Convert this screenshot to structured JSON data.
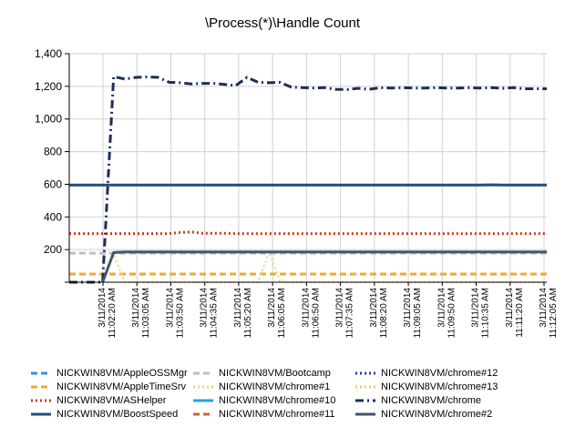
{
  "chart_data": {
    "type": "line",
    "title": "\\Process(*)\\Handle Count",
    "ylim": [
      0,
      1400
    ],
    "yticks": [
      "1,400",
      "1,200",
      "1,000",
      "800",
      "600",
      "400",
      "200",
      ""
    ],
    "ytick_values": [
      1400,
      1200,
      1000,
      800,
      600,
      400,
      200,
      0
    ],
    "x_tick_labels": [
      [
        "3/11/2014",
        "11:02:20 AM"
      ],
      [
        "3/11/2014",
        "11:03:05 AM"
      ],
      [
        "3/11/2014",
        "11:03:50 AM"
      ],
      [
        "3/11/2014",
        "11:04:35 AM"
      ],
      [
        "3/11/2014",
        "11:05:20 AM"
      ],
      [
        "3/11/2014",
        "11:06:05 AM"
      ],
      [
        "3/11/2014",
        "11:06:50 AM"
      ],
      [
        "3/11/2014",
        "11:07:35 AM"
      ],
      [
        "3/11/2014",
        "11:08:20 AM"
      ],
      [
        "3/11/2014",
        "11:09:05 AM"
      ],
      [
        "3/11/2014",
        "11:09:50 AM"
      ],
      [
        "3/11/2014",
        "11:10:35 AM"
      ],
      [
        "3/11/2014",
        "11:11:20 AM"
      ],
      [
        "3/11/2014",
        "11:12:05 AM"
      ]
    ],
    "x": [
      "11:01:35",
      "11:01:50",
      "11:02:05",
      "11:02:20",
      "11:02:35",
      "11:02:50",
      "11:03:05",
      "11:03:20",
      "11:03:35",
      "11:03:50",
      "11:04:05",
      "11:04:20",
      "11:04:35",
      "11:04:50",
      "11:05:05",
      "11:05:20",
      "11:05:35",
      "11:05:50",
      "11:06:05",
      "11:06:20",
      "11:06:35",
      "11:06:50",
      "11:07:05",
      "11:07:20",
      "11:07:35",
      "11:07:50",
      "11:08:05",
      "11:08:20",
      "11:08:35",
      "11:08:50",
      "11:09:05",
      "11:09:20",
      "11:09:35",
      "11:09:50",
      "11:10:05",
      "11:10:20",
      "11:10:35",
      "11:10:50",
      "11:11:05",
      "11:11:20",
      "11:11:35",
      "11:11:50",
      "11:12:05",
      "11:12:20"
    ],
    "grid": true,
    "legend_placement": "bottom",
    "series": [
      {
        "name": "NICKWIN8VM/AppleOSSMgr",
        "color": "#3b8fe0",
        "dash": "dash",
        "width": 2,
        "values": [
          null,
          null,
          null,
          null,
          null,
          null,
          null,
          null,
          null,
          null,
          null,
          null,
          null,
          null,
          null,
          null,
          null,
          null,
          null,
          null,
          null,
          null,
          null,
          null,
          null,
          null,
          null,
          null,
          null,
          null,
          null,
          null,
          null,
          null,
          null,
          null,
          null,
          null,
          null,
          null,
          null,
          null,
          null,
          null
        ]
      },
      {
        "name": "NICKWIN8VM/AppleTimeSrv",
        "color": "#f0a830",
        "dash": "dash",
        "width": 3,
        "values": [
          50,
          50,
          50,
          50,
          50,
          50,
          50,
          50,
          50,
          50,
          50,
          50,
          50,
          50,
          50,
          50,
          50,
          50,
          50,
          50,
          50,
          50,
          50,
          50,
          50,
          50,
          50,
          50,
          50,
          50,
          50,
          50,
          50,
          50,
          50,
          50,
          50,
          50,
          50,
          50,
          50,
          50,
          50,
          50
        ]
      },
      {
        "name": "NICKWIN8VM/ASHelper",
        "color": "#cc3a1c",
        "dash": "dot",
        "width": 3,
        "values": [
          298,
          298,
          298,
          298,
          298,
          298,
          298,
          298,
          298,
          298,
          305,
          308,
          300,
          300,
          300,
          298,
          298,
          298,
          298,
          298,
          298,
          298,
          298,
          298,
          298,
          298,
          298,
          298,
          298,
          298,
          298,
          298,
          298,
          298,
          298,
          298,
          298,
          298,
          298,
          298,
          298,
          298,
          298,
          298
        ]
      },
      {
        "name": "NICKWIN8VM/BoostSpeed",
        "color": "#1f4e79",
        "dash": "solid",
        "width": 3,
        "values": [
          595,
          595,
          595,
          595,
          595,
          595,
          595,
          595,
          595,
          595,
          595,
          595,
          595,
          595,
          595,
          595,
          595,
          595,
          595,
          595,
          595,
          595,
          595,
          595,
          595,
          595,
          595,
          595,
          595,
          595,
          595,
          595,
          595,
          595,
          595,
          595,
          595,
          595,
          597,
          595,
          595,
          595,
          595,
          595
        ]
      },
      {
        "name": "NICKWIN8VM/Bootcamp",
        "color": "#c0c0c0",
        "dash": "dash",
        "width": 3,
        "values": [
          178,
          178,
          178,
          178,
          178,
          178,
          178,
          178,
          178,
          178,
          178,
          178,
          178,
          178,
          178,
          178,
          178,
          178,
          178,
          178,
          178,
          178,
          178,
          178,
          178,
          178,
          178,
          178,
          178,
          178,
          178,
          178,
          178,
          178,
          178,
          178,
          178,
          178,
          178,
          178,
          178,
          178,
          178,
          178
        ]
      },
      {
        "name": "NICKWIN8VM/chrome#1",
        "color": "#f7d07a",
        "dash": "dot",
        "width": 2,
        "values": [
          null,
          null,
          null,
          0,
          170,
          0,
          0,
          0,
          0,
          0,
          0,
          0,
          0,
          0,
          0,
          0,
          0,
          0,
          185,
          0,
          0,
          0,
          0,
          0,
          0,
          0,
          0,
          0,
          0,
          0,
          0,
          0,
          0,
          0,
          0,
          0,
          0,
          0,
          0,
          0,
          0,
          0,
          0,
          0
        ]
      },
      {
        "name": "NICKWIN8VM/chrome#10",
        "color": "#2a9fe0",
        "dash": "solid",
        "width": 2,
        "values": [
          null,
          null,
          null,
          null,
          null,
          null,
          null,
          null,
          null,
          null,
          null,
          null,
          null,
          null,
          null,
          null,
          null,
          null,
          null,
          null,
          null,
          null,
          null,
          null,
          null,
          null,
          null,
          null,
          null,
          null,
          null,
          null,
          null,
          null,
          null,
          null,
          null,
          null,
          null,
          null,
          null,
          null,
          null,
          null
        ]
      },
      {
        "name": "NICKWIN8VM/chrome#11",
        "color": "#d0603a",
        "dash": "dash",
        "width": 3,
        "values": [
          null,
          null,
          null,
          null,
          null,
          null,
          null,
          null,
          null,
          null,
          null,
          null,
          null,
          null,
          null,
          null,
          null,
          null,
          null,
          null,
          null,
          null,
          null,
          null,
          null,
          null,
          null,
          null,
          null,
          null,
          null,
          null,
          null,
          null,
          null,
          null,
          null,
          null,
          null,
          null,
          null,
          null,
          null,
          null
        ]
      },
      {
        "name": "NICKWIN8VM/chrome#12",
        "color": "#1a3fae",
        "dash": "dot",
        "width": 3,
        "values": [
          null,
          null,
          null,
          null,
          null,
          null,
          null,
          null,
          null,
          null,
          null,
          null,
          null,
          null,
          null,
          null,
          null,
          null,
          null,
          null,
          null,
          null,
          null,
          null,
          null,
          null,
          null,
          null,
          null,
          null,
          null,
          null,
          null,
          null,
          null,
          null,
          null,
          null,
          null,
          null,
          null,
          null,
          null,
          null
        ]
      },
      {
        "name": "NICKWIN8VM/chrome#13",
        "color": "#f7c66a",
        "dash": "dot",
        "width": 2,
        "values": [
          null,
          null,
          null,
          null,
          null,
          null,
          null,
          null,
          null,
          null,
          null,
          null,
          null,
          null,
          null,
          null,
          null,
          null,
          null,
          null,
          null,
          null,
          null,
          null,
          null,
          null,
          null,
          null,
          null,
          null,
          null,
          null,
          null,
          null,
          null,
          null,
          null,
          null,
          null,
          null,
          null,
          null,
          null,
          null
        ]
      },
      {
        "name": "NICKWIN8VM/chrome",
        "color": "#1c2f52",
        "dash": "dashdot",
        "width": 3,
        "values": [
          0,
          0,
          0,
          0,
          1260,
          1245,
          1255,
          1258,
          1255,
          1225,
          1222,
          1215,
          1218,
          1218,
          1212,
          1205,
          1255,
          1225,
          1222,
          1225,
          1195,
          1192,
          1190,
          1192,
          1182,
          1180,
          1188,
          1182,
          1192,
          1190,
          1192,
          1190,
          1190,
          1192,
          1190,
          1190,
          1192,
          1190,
          1192,
          1188,
          1192,
          1185,
          1185,
          1185
        ]
      },
      {
        "name": "NICKWIN8VM/chrome#2",
        "color": "#44546a",
        "dash": "solid",
        "width": 3,
        "values": [
          null,
          null,
          null,
          0,
          182,
          185,
          185,
          185,
          185,
          185,
          185,
          185,
          185,
          185,
          185,
          185,
          185,
          185,
          185,
          185,
          185,
          185,
          185,
          185,
          185,
          185,
          185,
          185,
          185,
          185,
          185,
          185,
          185,
          185,
          185,
          185,
          185,
          185,
          185,
          185,
          185,
          185,
          185,
          185
        ]
      }
    ]
  }
}
